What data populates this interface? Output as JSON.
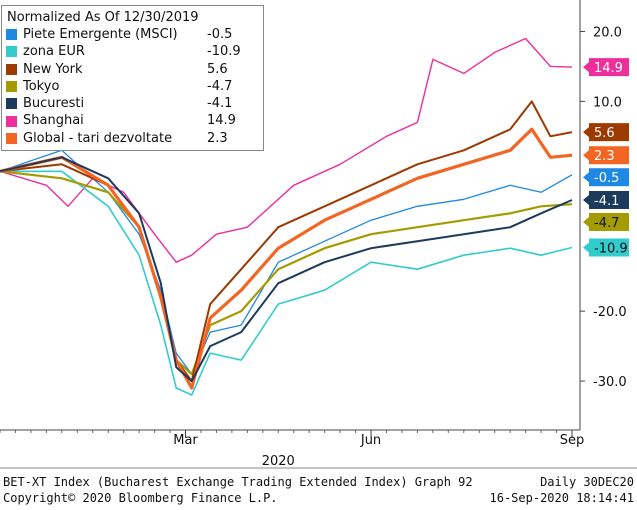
{
  "chart_data": {
    "type": "line",
    "legend_title": "Normalized As Of 12/30/2019",
    "legend_placement": "top-left",
    "x_ticks": [
      "Mar",
      "Jun",
      "Sep"
    ],
    "x_year_label": "2020",
    "y_ticks": [
      20,
      10,
      -20,
      -30
    ],
    "y_tick_labels": [
      "20.0",
      "10.0",
      "-20.0",
      "-30.0"
    ],
    "ylim": [
      -37,
      24.5
    ],
    "xlim": [
      0,
      185
    ],
    "grid": false,
    "series": [
      {
        "name": "Piete Emergente (MSCI)",
        "last": "-0.5",
        "color": "#1e88e5",
        "values": [
          [
            0,
            0
          ],
          [
            20,
            3
          ],
          [
            35,
            -3
          ],
          [
            45,
            -9
          ],
          [
            52,
            -17
          ],
          [
            57,
            -26
          ],
          [
            62,
            -29
          ],
          [
            68,
            -23
          ],
          [
            78,
            -22
          ],
          [
            90,
            -13
          ],
          [
            105,
            -10
          ],
          [
            120,
            -7
          ],
          [
            135,
            -5
          ],
          [
            150,
            -4
          ],
          [
            165,
            -2
          ],
          [
            175,
            -3
          ],
          [
            185,
            -0.5
          ]
        ]
      },
      {
        "name": "zona EUR",
        "last": "-10.9",
        "color": "#33cccc",
        "values": [
          [
            0,
            0
          ],
          [
            20,
            0
          ],
          [
            35,
            -5
          ],
          [
            45,
            -12
          ],
          [
            52,
            -22
          ],
          [
            57,
            -31
          ],
          [
            62,
            -32
          ],
          [
            68,
            -26
          ],
          [
            78,
            -27
          ],
          [
            90,
            -19
          ],
          [
            105,
            -17
          ],
          [
            120,
            -13
          ],
          [
            135,
            -14
          ],
          [
            150,
            -12
          ],
          [
            165,
            -11
          ],
          [
            175,
            -12
          ],
          [
            185,
            -10.9
          ]
        ]
      },
      {
        "name": "New York",
        "last": "5.6",
        "color": "#9c3a00",
        "values": [
          [
            0,
            0
          ],
          [
            20,
            1
          ],
          [
            35,
            -2
          ],
          [
            45,
            -8
          ],
          [
            52,
            -18
          ],
          [
            57,
            -27
          ],
          [
            62,
            -30
          ],
          [
            68,
            -19
          ],
          [
            78,
            -14
          ],
          [
            90,
            -8
          ],
          [
            105,
            -5
          ],
          [
            120,
            -2
          ],
          [
            135,
            1
          ],
          [
            150,
            3
          ],
          [
            165,
            6
          ],
          [
            172,
            10
          ],
          [
            178,
            5
          ],
          [
            185,
            5.6
          ]
        ]
      },
      {
        "name": "Tokyo",
        "last": "-4.7",
        "color": "#a39b00",
        "values": [
          [
            0,
            0
          ],
          [
            20,
            -1
          ],
          [
            35,
            -3
          ],
          [
            45,
            -8
          ],
          [
            52,
            -18
          ],
          [
            57,
            -27
          ],
          [
            62,
            -29
          ],
          [
            68,
            -22
          ],
          [
            78,
            -20
          ],
          [
            90,
            -14
          ],
          [
            105,
            -11
          ],
          [
            120,
            -9
          ],
          [
            135,
            -8
          ],
          [
            150,
            -7
          ],
          [
            165,
            -6
          ],
          [
            175,
            -5
          ],
          [
            185,
            -4.7
          ]
        ]
      },
      {
        "name": "Bucuresti",
        "last": "-4.1",
        "color": "#1b3a5c",
        "values": [
          [
            0,
            0
          ],
          [
            20,
            2
          ],
          [
            35,
            -1
          ],
          [
            45,
            -6
          ],
          [
            52,
            -16
          ],
          [
            57,
            -28
          ],
          [
            62,
            -30
          ],
          [
            68,
            -25
          ],
          [
            78,
            -23
          ],
          [
            90,
            -16
          ],
          [
            105,
            -13
          ],
          [
            120,
            -11
          ],
          [
            135,
            -10
          ],
          [
            150,
            -9
          ],
          [
            165,
            -8
          ],
          [
            175,
            -6
          ],
          [
            185,
            -4.1
          ]
        ]
      },
      {
        "name": "Shanghai",
        "last": "14.9",
        "color": "#ee2e9b",
        "values": [
          [
            0,
            0
          ],
          [
            15,
            -2
          ],
          [
            22,
            -5
          ],
          [
            30,
            -1
          ],
          [
            40,
            -3
          ],
          [
            50,
            -9
          ],
          [
            57,
            -13
          ],
          [
            62,
            -12
          ],
          [
            70,
            -9
          ],
          [
            80,
            -8
          ],
          [
            95,
            -2
          ],
          [
            110,
            1
          ],
          [
            125,
            5
          ],
          [
            135,
            7
          ],
          [
            140,
            16
          ],
          [
            150,
            14
          ],
          [
            160,
            17
          ],
          [
            170,
            19
          ],
          [
            178,
            15
          ],
          [
            185,
            14.9
          ]
        ]
      },
      {
        "name": "Global - tari dezvoltate",
        "last": "2.3",
        "color": "#f26522",
        "values": [
          [
            0,
            0
          ],
          [
            20,
            2
          ],
          [
            35,
            -2
          ],
          [
            45,
            -8
          ],
          [
            52,
            -18
          ],
          [
            57,
            -27
          ],
          [
            62,
            -31
          ],
          [
            68,
            -21
          ],
          [
            78,
            -17
          ],
          [
            90,
            -11
          ],
          [
            105,
            -7
          ],
          [
            120,
            -4
          ],
          [
            135,
            -1
          ],
          [
            150,
            1
          ],
          [
            165,
            3
          ],
          [
            172,
            6
          ],
          [
            178,
            2
          ],
          [
            185,
            2.3
          ]
        ]
      }
    ]
  },
  "footer": {
    "left_line1": "BET-XT Index (Bucharest Exchange Trading Extended Index) Graph 92",
    "right_line1": "Daily 30DEC20",
    "left_line2": "Copyright© 2020 Bloomberg Finance L.P.",
    "right_line2": "16-Sep-2020 18:14:41"
  }
}
